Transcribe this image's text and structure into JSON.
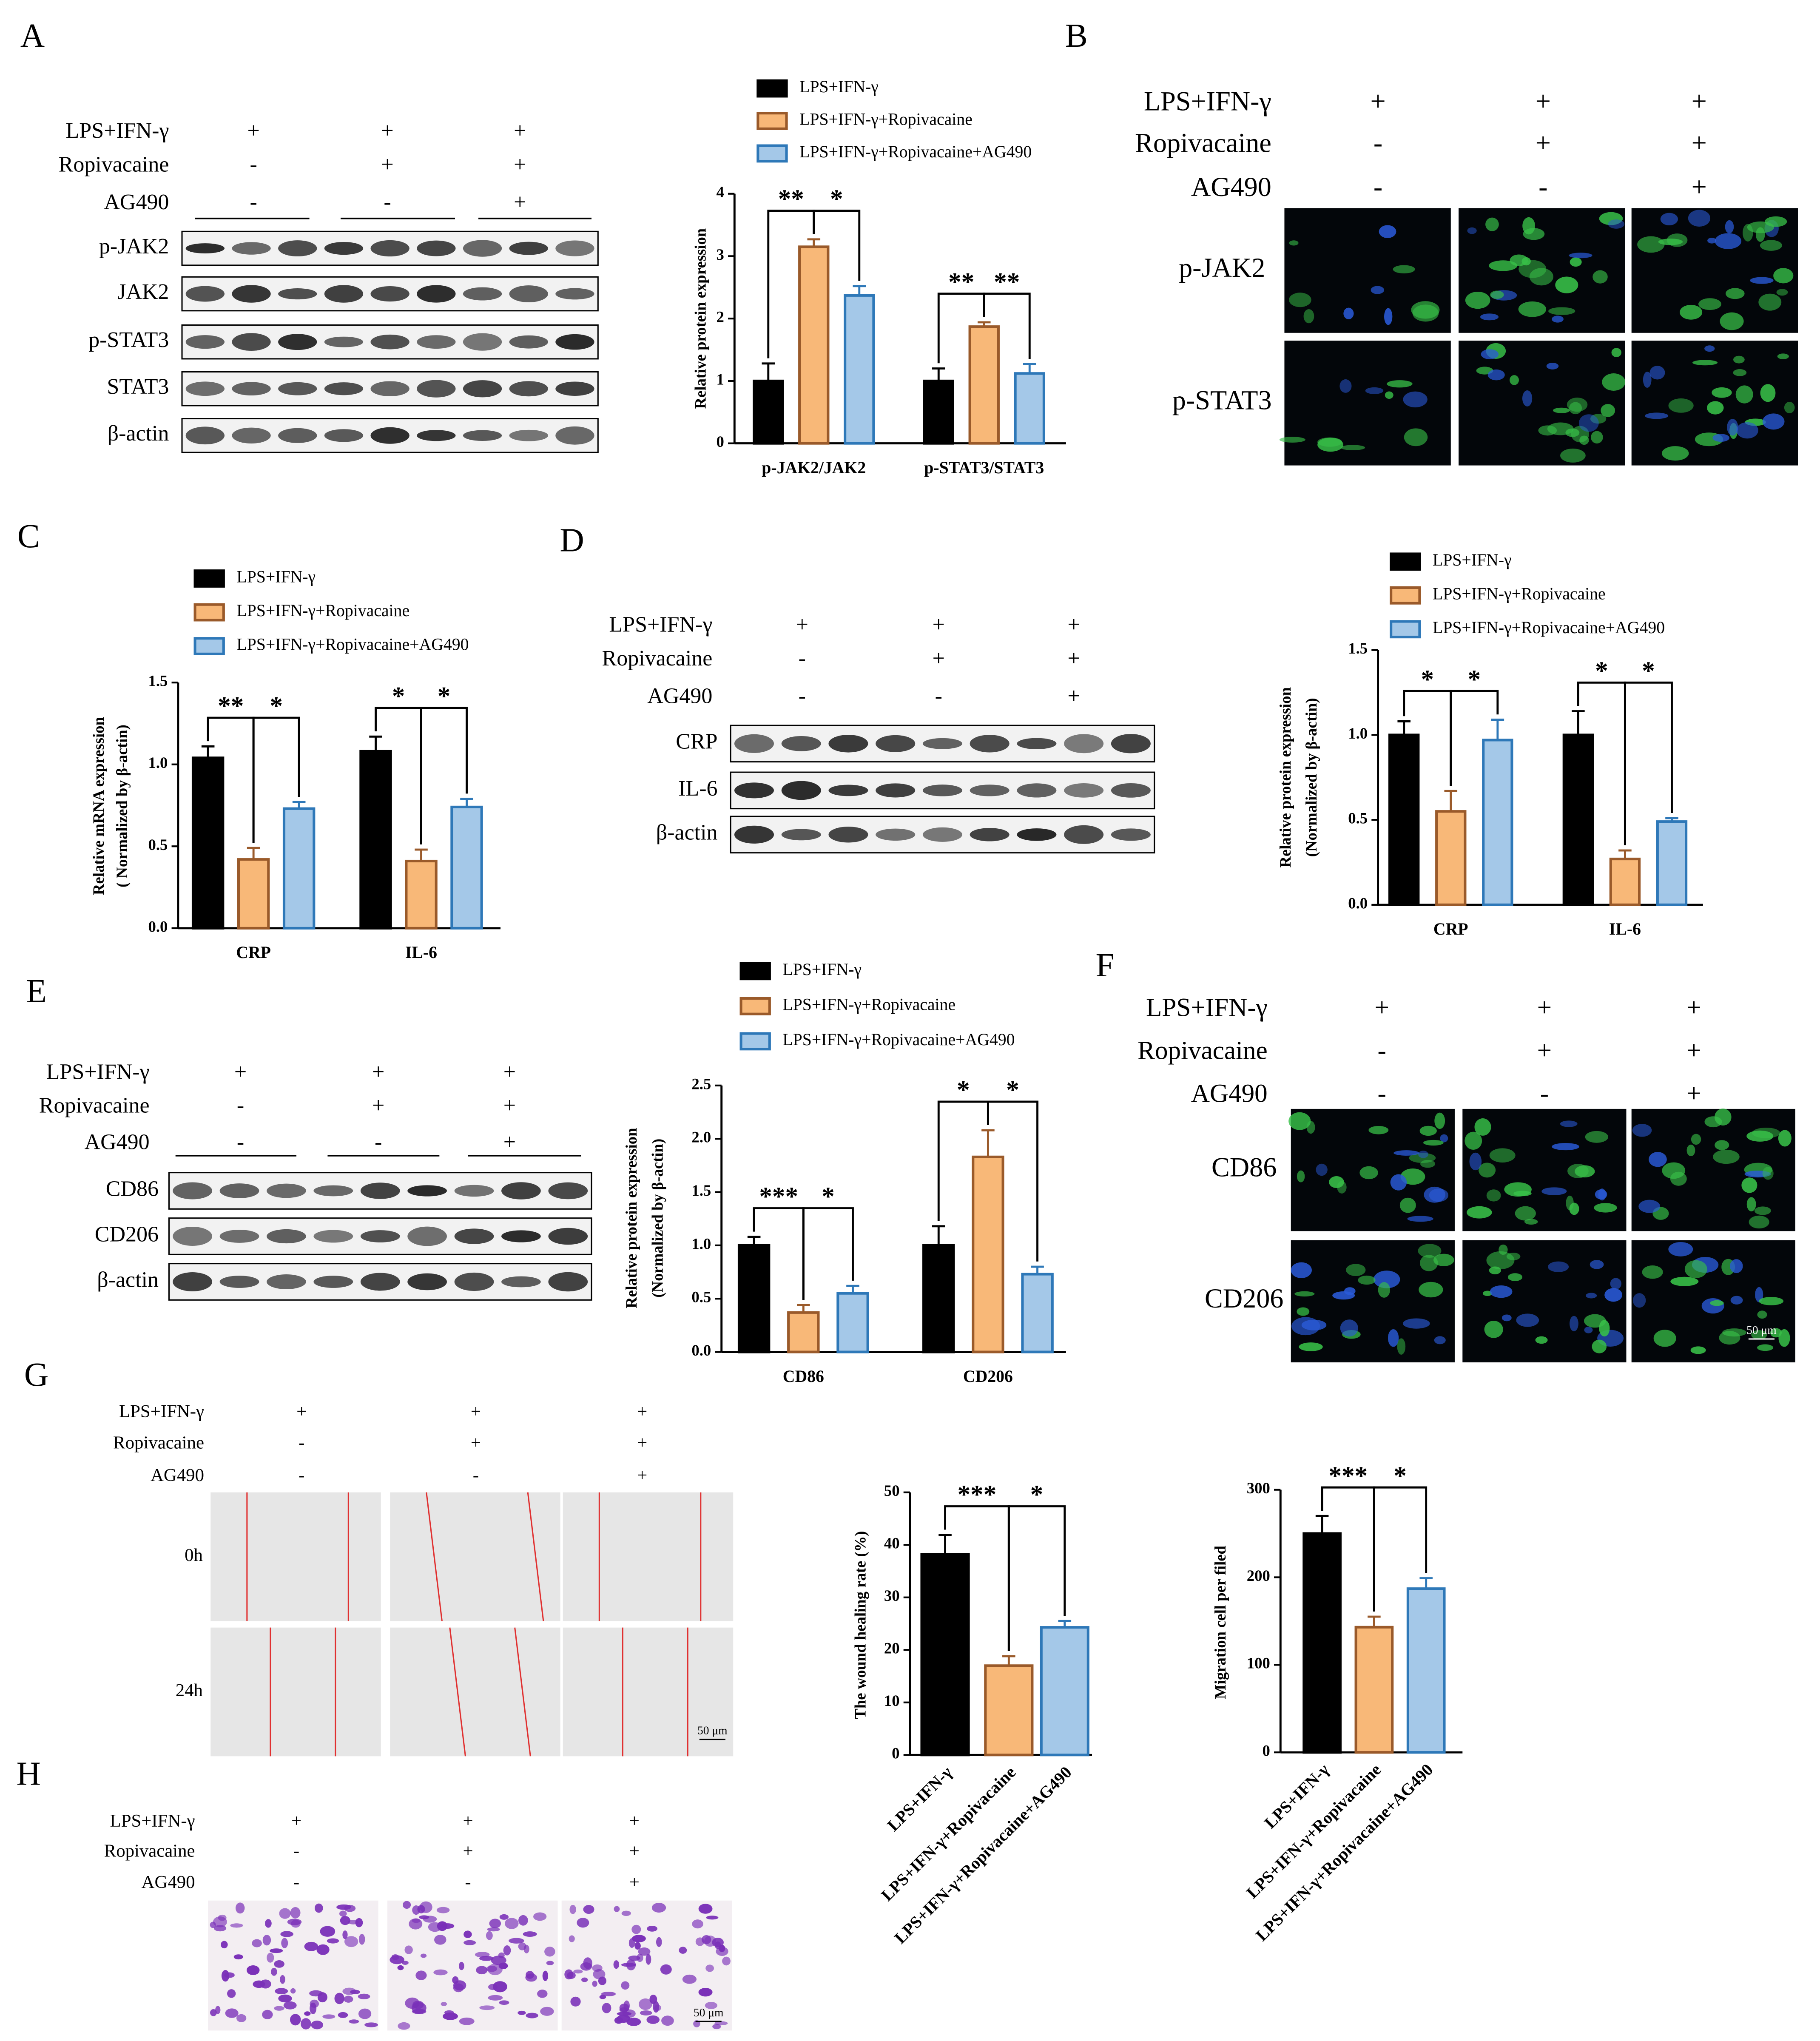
{
  "panels": [
    {
      "label": "A",
      "treatment": {
        "rows": [
          {
            "name": "LPS+IFN-γ",
            "signs": [
              "+",
              "+",
              "+"
            ]
          },
          {
            "name": "Ropivacaine",
            "signs": [
              "-",
              "+",
              "+"
            ]
          },
          {
            "name": "AG490",
            "signs": [
              "-",
              "-",
              "+"
            ]
          }
        ]
      },
      "blot_rows": [
        "p-JAK2",
        "JAK2",
        "p-STAT3",
        "STAT3",
        "β-actin"
      ]
    },
    {
      "label": "B",
      "treatment": {
        "rows": [
          {
            "name": "LPS+IFN-γ",
            "signs": [
              "+",
              "+",
              "+"
            ]
          },
          {
            "name": "Ropivacaine",
            "signs": [
              "-",
              "+",
              "+"
            ]
          },
          {
            "name": "AG490",
            "signs": [
              "-",
              "-",
              "+"
            ]
          }
        ]
      },
      "image_rows": [
        "p-JAK2",
        "p-STAT3"
      ]
    },
    {
      "label": "C"
    },
    {
      "label": "D",
      "treatment": {
        "rows": [
          {
            "name": "LPS+IFN-γ",
            "signs": [
              "+",
              "+",
              "+"
            ]
          },
          {
            "name": "Ropivacaine",
            "signs": [
              "-",
              "+",
              "+"
            ]
          },
          {
            "name": "AG490",
            "signs": [
              "-",
              "-",
              "+"
            ]
          }
        ]
      },
      "blot_rows": [
        "CRP",
        "IL-6",
        "β-actin"
      ]
    },
    {
      "label": "E",
      "treatment": {
        "rows": [
          {
            "name": "LPS+IFN-γ",
            "signs": [
              "+",
              "+",
              "+"
            ]
          },
          {
            "name": "Ropivacaine",
            "signs": [
              "-",
              "+",
              "+"
            ]
          },
          {
            "name": "AG490",
            "signs": [
              "-",
              "-",
              "+"
            ]
          }
        ]
      },
      "blot_rows": [
        "CD86",
        "CD206",
        "β-actin"
      ]
    },
    {
      "label": "F",
      "treatment": {
        "rows": [
          {
            "name": "LPS+IFN-γ",
            "signs": [
              "+",
              "+",
              "+"
            ]
          },
          {
            "name": "Ropivacaine",
            "signs": [
              "-",
              "+",
              "+"
            ]
          },
          {
            "name": "AG490",
            "signs": [
              "-",
              "-",
              "+"
            ]
          }
        ]
      },
      "image_rows": [
        "CD86",
        "CD206"
      ],
      "scale_bar": "50 μm"
    },
    {
      "label": "G",
      "treatment": {
        "rows": [
          {
            "name": "LPS+IFN-γ",
            "signs": [
              "+",
              "+",
              "+"
            ]
          },
          {
            "name": "Ropivacaine",
            "signs": [
              "-",
              "+",
              "+"
            ]
          },
          {
            "name": "AG490",
            "signs": [
              "-",
              "-",
              "+"
            ]
          }
        ]
      },
      "image_rows": [
        "0h",
        "24h"
      ],
      "scale_bar": "50 μm"
    },
    {
      "label": "H",
      "treatment": {
        "rows": [
          {
            "name": "LPS+IFN-γ",
            "signs": [
              "+",
              "+",
              "+"
            ]
          },
          {
            "name": "Ropivacaine",
            "signs": [
              "-",
              "+",
              "+"
            ]
          },
          {
            "name": "AG490",
            "signs": [
              "-",
              "-",
              "+"
            ]
          }
        ]
      },
      "scale_bar": "50 μm"
    }
  ],
  "chart_data": [
    {
      "type": "grouped_bar",
      "y_label": [
        "Relative protein expression"
      ],
      "categories": [
        "p-JAK2/JAK2",
        "p-STAT3/STAT3"
      ],
      "series": [
        {
          "name": "LPS+IFN-γ",
          "color": "#000000",
          "edgecolor": "#000000",
          "values": [
            1.0,
            1.0
          ],
          "errors": [
            0.28,
            0.2
          ]
        },
        {
          "name": "LPS+IFN-γ+Ropivacaine",
          "color": "#f8b878",
          "edgecolor": "#9a5a2a",
          "values": [
            3.15,
            1.87
          ],
          "errors": [
            0.12,
            0.07
          ]
        },
        {
          "name": "LPS+IFN-γ+Ropivacaine+AG490",
          "color": "#a4c8e8",
          "edgecolor": "#2e78b8",
          "values": [
            2.37,
            1.12
          ],
          "errors": [
            0.15,
            0.15
          ]
        }
      ],
      "ylim": [
        0,
        4
      ],
      "yticks": [
        0,
        1,
        2,
        3,
        4
      ],
      "annotations": [
        "**",
        "*",
        "**",
        "**"
      ]
    },
    {
      "type": "grouped_bar",
      "y_label": [
        "Relative mRNA expression",
        "( Normalized by β-actin)"
      ],
      "categories": [
        "CRP",
        "IL-6"
      ],
      "series": [
        {
          "name": "LPS+IFN-γ",
          "color": "#000000",
          "edgecolor": "#000000",
          "values": [
            1.04,
            1.08
          ],
          "errors": [
            0.07,
            0.09
          ]
        },
        {
          "name": "LPS+IFN-γ+Ropivacaine",
          "color": "#f8b878",
          "edgecolor": "#9a5a2a",
          "values": [
            0.42,
            0.41
          ],
          "errors": [
            0.07,
            0.07
          ]
        },
        {
          "name": "LPS+IFN-γ+Ropivacaine+AG490",
          "color": "#a4c8e8",
          "edgecolor": "#2e78b8",
          "values": [
            0.73,
            0.74
          ],
          "errors": [
            0.04,
            0.05
          ]
        }
      ],
      "ylim": [
        0,
        1.5
      ],
      "yticks": [
        {
          "value": 0,
          "label": "0.0"
        },
        0.5,
        {
          "value": 1,
          "label": "1.0"
        },
        1.5
      ],
      "annotations": [
        "**",
        "*",
        "*",
        "*"
      ]
    },
    {
      "type": "grouped_bar",
      "y_label": [
        "Relative protein expression",
        "(Normalized by β-actin)"
      ],
      "categories": [
        "CRP",
        "IL-6"
      ],
      "series": [
        {
          "name": "LPS+IFN-γ",
          "color": "#000000",
          "edgecolor": "#000000",
          "values": [
            1.0,
            1.0
          ],
          "errors": [
            0.08,
            0.14
          ]
        },
        {
          "name": "LPS+IFN-γ+Ropivacaine",
          "color": "#f8b878",
          "edgecolor": "#9a5a2a",
          "values": [
            0.55,
            0.27
          ],
          "errors": [
            0.12,
            0.05
          ]
        },
        {
          "name": "LPS+IFN-γ+Ropivacaine+AG490",
          "color": "#a4c8e8",
          "edgecolor": "#2e78b8",
          "values": [
            0.97,
            0.49
          ],
          "errors": [
            0.12,
            0.02
          ]
        }
      ],
      "ylim": [
        0,
        1.5
      ],
      "yticks": [
        {
          "value": 0,
          "label": "0.0"
        },
        0.5,
        {
          "value": 1,
          "label": "1.0"
        },
        1.5
      ],
      "annotations": [
        "*",
        "*",
        "*",
        "*"
      ]
    },
    {
      "type": "grouped_bar",
      "y_label": [
        "Relative protein expression",
        "(Normalized by β-actin)"
      ],
      "categories": [
        "CD86",
        "CD206"
      ],
      "series": [
        {
          "name": "LPS+IFN-γ",
          "color": "#000000",
          "edgecolor": "#000000",
          "values": [
            1.0,
            1.0
          ],
          "errors": [
            0.08,
            0.18
          ]
        },
        {
          "name": "LPS+IFN-γ+Ropivacaine",
          "color": "#f8b878",
          "edgecolor": "#9a5a2a",
          "values": [
            0.37,
            1.83
          ],
          "errors": [
            0.07,
            0.25
          ]
        },
        {
          "name": "LPS+IFN-γ+Ropivacaine+AG490",
          "color": "#a4c8e8",
          "edgecolor": "#2e78b8",
          "values": [
            0.55,
            0.73
          ],
          "errors": [
            0.07,
            0.07
          ]
        }
      ],
      "ylim": [
        0,
        2.5
      ],
      "yticks": [
        {
          "value": 0,
          "label": "0.0"
        },
        0.5,
        {
          "value": 1,
          "label": "1.0"
        },
        1.5,
        {
          "value": 2,
          "label": "2.0"
        },
        2.5
      ],
      "annotations": [
        "***",
        "*",
        "*",
        "*"
      ]
    },
    {
      "type": "bar",
      "y_label": [
        "The wound healing rate (%)"
      ],
      "categories": [
        "LPS+IFN-γ",
        "LPS+IFN-γ+Ropivacaine",
        "LPS+IFN-γ+Ropivacaine+AG490"
      ],
      "values": [
        38.2,
        17,
        24.3
      ],
      "errors": [
        3.7,
        1.8,
        1.2
      ],
      "colors": [
        "#000000",
        "#f8b878",
        "#a4c8e8"
      ],
      "edgecolors": [
        "#000000",
        "#9a5a2a",
        "#2e78b8"
      ],
      "ylim": [
        0,
        50
      ],
      "yticks": [
        0,
        10,
        20,
        30,
        40,
        50
      ],
      "annotations": [
        "***",
        "*"
      ]
    },
    {
      "type": "bar",
      "y_label": [
        "Migration cell per filed"
      ],
      "categories": [
        "LPS+IFN-γ",
        "LPS+IFN-γ+Ropivacaine",
        "LPS+IFN-γ+Ropivacaine+AG490"
      ],
      "values": [
        250,
        143,
        187
      ],
      "errors": [
        20,
        12,
        12
      ],
      "colors": [
        "#000000",
        "#f8b878",
        "#a4c8e8"
      ],
      "edgecolors": [
        "#000000",
        "#9a5a2a",
        "#2e78b8"
      ],
      "ylim": [
        0,
        300
      ],
      "yticks": [
        0,
        100,
        200,
        300
      ],
      "annotations": [
        "***",
        "*"
      ]
    }
  ]
}
